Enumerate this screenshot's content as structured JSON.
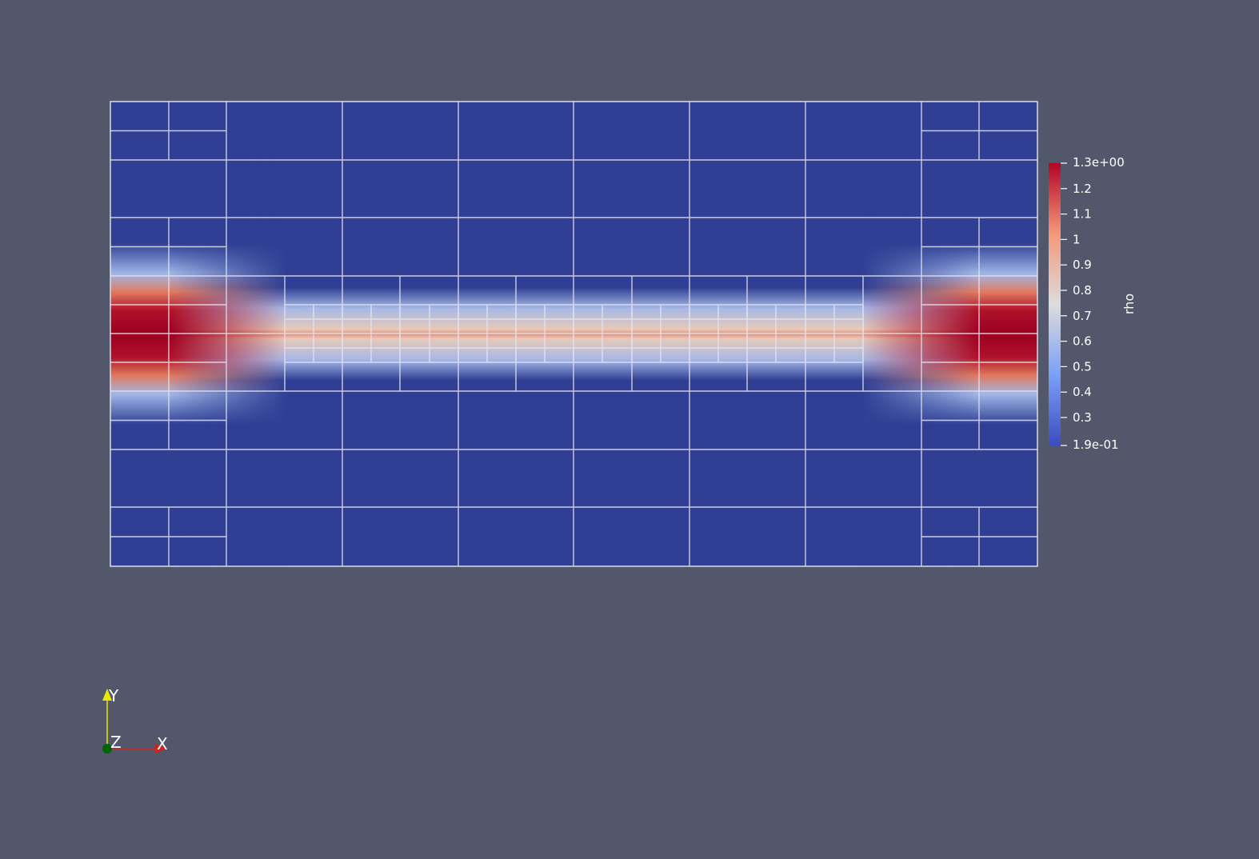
{
  "colorbar": {
    "title": "rho",
    "max_label": "1.3e+00",
    "min_label": "1.9e-01",
    "range": [
      0.19,
      1.3
    ],
    "ticks": [
      {
        "value": 1.2,
        "label": "1.2"
      },
      {
        "value": 1.1,
        "label": "1.1"
      },
      {
        "value": 1.0,
        "label": "1"
      },
      {
        "value": 0.9,
        "label": "0.9"
      },
      {
        "value": 0.8,
        "label": "0.8"
      },
      {
        "value": 0.7,
        "label": "0.7"
      },
      {
        "value": 0.6,
        "label": "0.6"
      },
      {
        "value": 0.5,
        "label": "0.5"
      },
      {
        "value": 0.4,
        "label": "0.4"
      },
      {
        "value": 0.3,
        "label": "0.3"
      }
    ],
    "colormap": [
      "#3b4cc0",
      "#dddddd",
      "#b40426"
    ]
  },
  "orientation_axes": {
    "y_label": "Y",
    "z_label": "Z",
    "x_label": "X",
    "x_color": "#d42020",
    "y_color": "#e8e800",
    "z_color": "#006400"
  },
  "colors": {
    "background": "#52576b",
    "field_low": "#303f94",
    "field_mid": "#c9d3f0",
    "field_high": "#a0001c",
    "mesh_lines": "#e6e6f0"
  }
}
